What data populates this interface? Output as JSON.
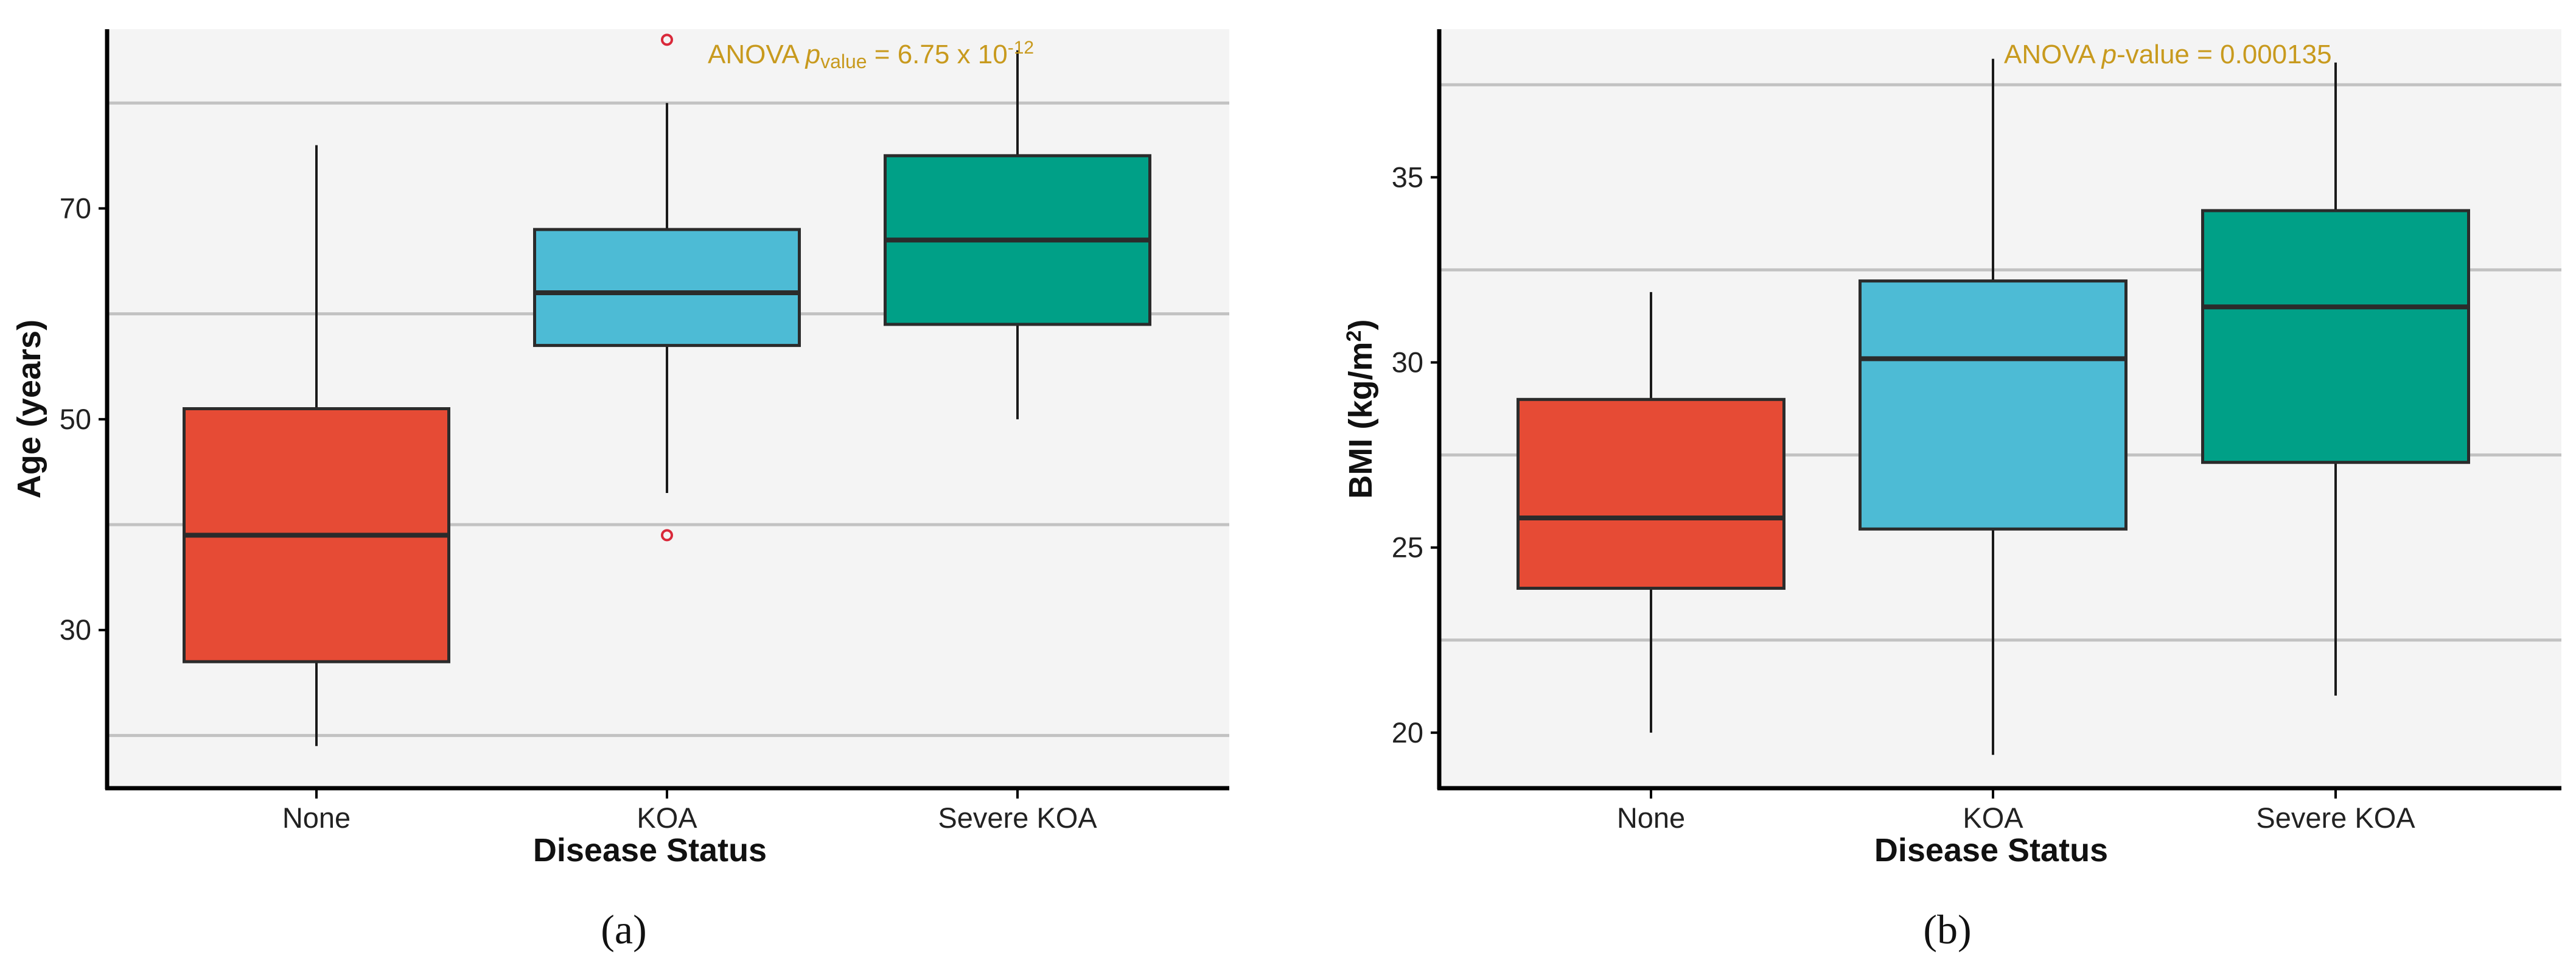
{
  "colors": {
    "none": "#e64b35",
    "koa": "#4dbbd5",
    "severe_koa": "#00a087",
    "panel_bg": "#f4f4f4",
    "gridline": "#c2c2c2",
    "annotation": "#c89a1e",
    "outlier": "#d9293a"
  },
  "chart_data": [
    {
      "type": "box",
      "caption": "(a)",
      "xlabel": "Disease Status",
      "ylabel": "Age (years)",
      "categories": [
        "None",
        "KOA",
        "Severe KOA"
      ],
      "ylim": [
        15,
        87
      ],
      "yticks": [
        30,
        50,
        70
      ],
      "gridlines": [
        20,
        40,
        60,
        80
      ],
      "annotation": {
        "prefix": "ANOVA ",
        "p": "p",
        "sub": "value",
        "mid": " = 6.75 x 10",
        "sup": "-12"
      },
      "boxes": [
        {
          "name": "None",
          "color_key": "none",
          "whisker_low": 19,
          "q1": 27,
          "median": 39,
          "q3": 51,
          "whisker_high": 76,
          "outliers": []
        },
        {
          "name": "KOA",
          "color_key": "koa",
          "whisker_low": 43,
          "q1": 57,
          "median": 62,
          "q3": 68,
          "whisker_high": 80,
          "outliers": [
            39,
            86
          ]
        },
        {
          "name": "Severe KOA",
          "color_key": "severe_koa",
          "whisker_low": 50,
          "q1": 59,
          "median": 67,
          "q3": 75,
          "whisker_high": 85,
          "outliers": []
        }
      ]
    },
    {
      "type": "box",
      "caption": "(b)",
      "xlabel": "Disease Status",
      "ylabel_main": "BMI (kg/m",
      "ylabel_sup": "2",
      "ylabel_end": ")",
      "categories": [
        "None",
        "KOA",
        "Severe KOA"
      ],
      "ylim": [
        18.5,
        39
      ],
      "yticks": [
        20,
        25,
        30,
        35
      ],
      "gridlines": [
        22.5,
        27.5,
        32.5,
        37.5
      ],
      "annotation": {
        "prefix": "ANOVA ",
        "p": "p",
        "rest": "-value = 0.000135"
      },
      "boxes": [
        {
          "name": "None",
          "color_key": "none",
          "whisker_low": 20,
          "q1": 23.9,
          "median": 25.8,
          "q3": 29,
          "whisker_high": 31.9,
          "outliers": []
        },
        {
          "name": "KOA",
          "color_key": "koa",
          "whisker_low": 19.4,
          "q1": 25.5,
          "median": 30.1,
          "q3": 32.2,
          "whisker_high": 38.2,
          "outliers": []
        },
        {
          "name": "Severe KOA",
          "color_key": "severe_koa",
          "whisker_low": 21,
          "q1": 27.3,
          "median": 31.5,
          "q3": 34.1,
          "whisker_high": 38.1,
          "outliers": []
        }
      ]
    }
  ]
}
